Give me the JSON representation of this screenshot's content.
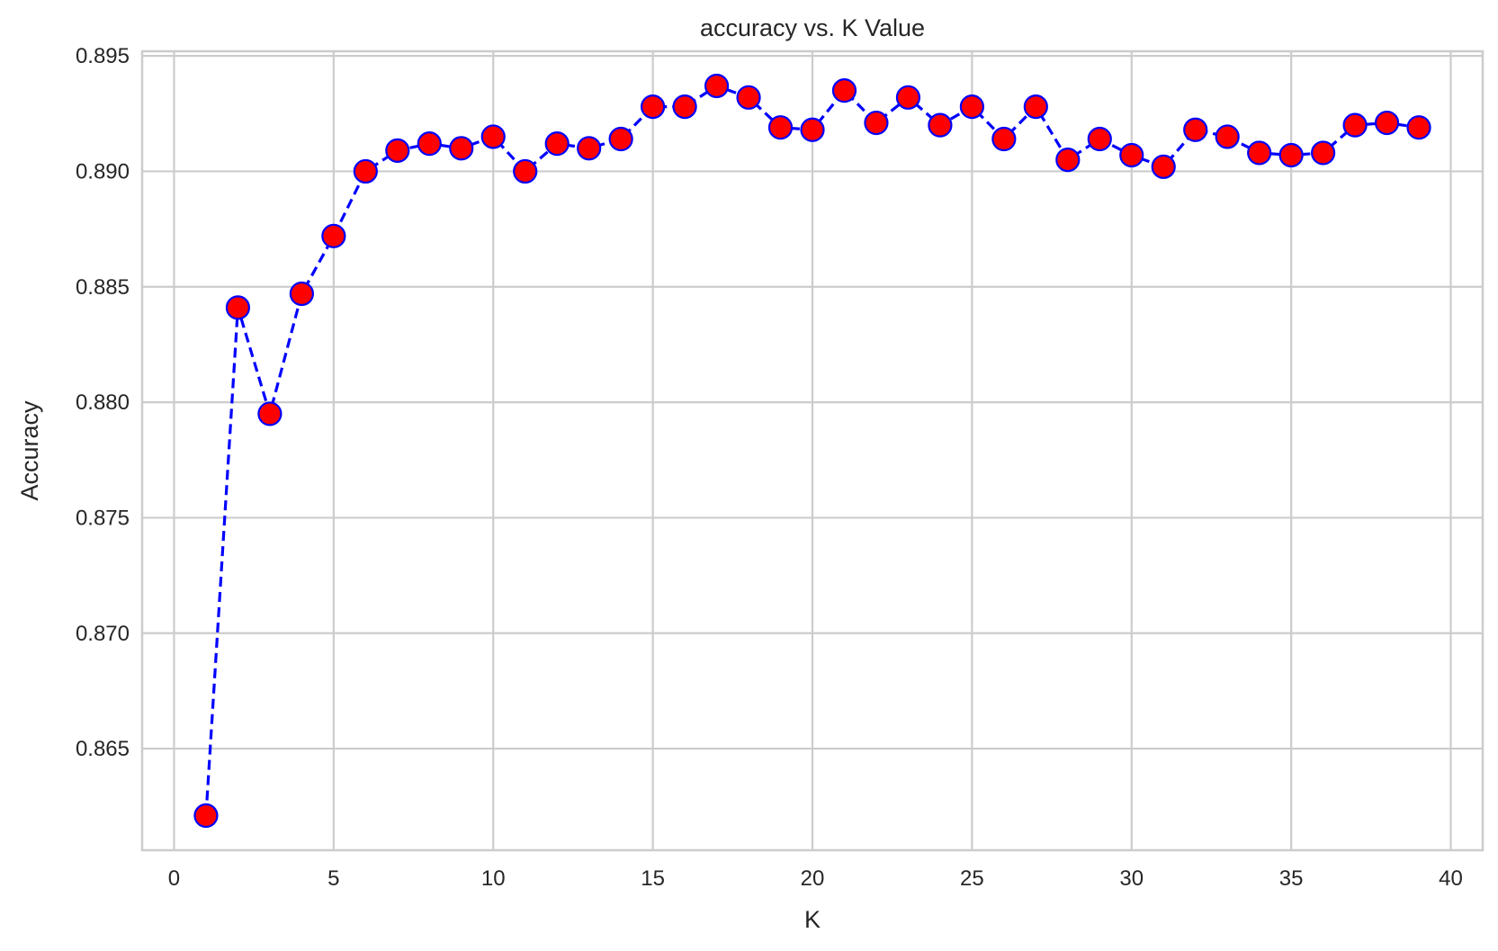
{
  "chart_data": {
    "type": "line",
    "title": "accuracy vs. K Value",
    "xlabel": "K",
    "ylabel": "Accuracy",
    "xlim": [
      -1.0,
      41.0
    ],
    "ylim": [
      0.8606,
      0.8952
    ],
    "xticks": [
      0,
      5,
      10,
      15,
      20,
      25,
      30,
      35,
      40
    ],
    "xtick_labels": [
      "0",
      "5",
      "10",
      "15",
      "20",
      "25",
      "30",
      "35",
      "40"
    ],
    "yticks": [
      0.865,
      0.87,
      0.875,
      0.88,
      0.885,
      0.89,
      0.895
    ],
    "ytick_labels": [
      "0.865",
      "0.870",
      "0.875",
      "0.880",
      "0.885",
      "0.890",
      "0.895"
    ],
    "grid": true,
    "series": [
      {
        "line_color": "#0000ff",
        "line_style": "dashed",
        "marker": "circle",
        "marker_face_color": "#ff0000",
        "marker_edge_color": "#0000ff",
        "x": [
          1,
          2,
          3,
          4,
          5,
          6,
          7,
          8,
          9,
          10,
          11,
          12,
          13,
          14,
          15,
          16,
          17,
          18,
          19,
          20,
          21,
          22,
          23,
          24,
          25,
          26,
          27,
          28,
          29,
          30,
          31,
          32,
          33,
          34,
          35,
          36,
          37,
          38,
          39
        ],
        "y": [
          0.8621,
          0.8841,
          0.8795,
          0.8847,
          0.8872,
          0.89,
          0.8909,
          0.8912,
          0.891,
          0.8915,
          0.89,
          0.8912,
          0.891,
          0.8914,
          0.8928,
          0.8928,
          0.8937,
          0.8932,
          0.8919,
          0.8918,
          0.8935,
          0.8921,
          0.8932,
          0.892,
          0.8928,
          0.8914,
          0.8928,
          0.8905,
          0.8914,
          0.8907,
          0.8902,
          0.8918,
          0.8915,
          0.8908,
          0.8907,
          0.8908,
          0.892,
          0.8921,
          0.8919
        ]
      }
    ]
  }
}
